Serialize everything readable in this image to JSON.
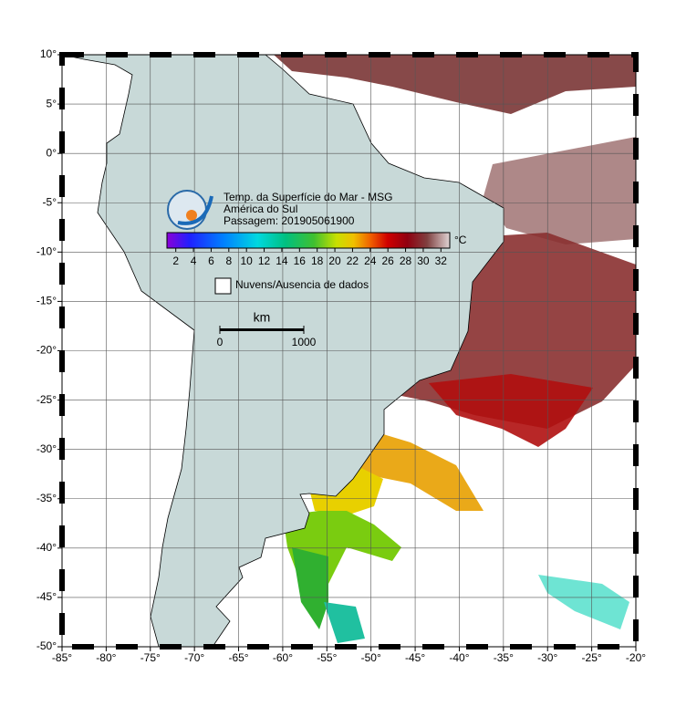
{
  "chart_data": {
    "type": "map",
    "title": "Temp. da Superfície do Mar - MSG",
    "subtitle": "América do Sul",
    "pass": "Passagem: 201905061900",
    "xlim": [
      -85,
      -20
    ],
    "xticks": [
      {
        "value": -85,
        "label": "-85°"
      },
      {
        "value": -80,
        "label": "-80°"
      },
      {
        "value": -75,
        "label": "-75°"
      },
      {
        "value": -70,
        "label": "-70°"
      },
      {
        "value": -65,
        "label": "-65°"
      },
      {
        "value": -60,
        "label": "-60°"
      },
      {
        "value": -55,
        "label": "-55°"
      },
      {
        "value": -50,
        "label": "-50°"
      },
      {
        "value": -45,
        "label": "-45°"
      },
      {
        "value": -40,
        "label": "-40°"
      },
      {
        "value": -35,
        "label": "-35°"
      },
      {
        "value": -30,
        "label": "-30°"
      },
      {
        "value": -25,
        "label": "-25°"
      },
      {
        "value": -20,
        "label": "-20°"
      }
    ],
    "ylim": [
      -50,
      10
    ],
    "yticks": [
      {
        "value": 10,
        "label": "10°"
      },
      {
        "value": 5,
        "label": "5°"
      },
      {
        "value": 0,
        "label": "0°"
      },
      {
        "value": -5,
        "label": "-5°"
      },
      {
        "value": -10,
        "label": "-10°"
      },
      {
        "value": -15,
        "label": "-15°"
      },
      {
        "value": -20,
        "label": "-20°"
      },
      {
        "value": -25,
        "label": "-25°"
      },
      {
        "value": -30,
        "label": "-30°"
      },
      {
        "value": -35,
        "label": "-35°"
      },
      {
        "value": -40,
        "label": "-40°"
      },
      {
        "value": -45,
        "label": "-45°"
      },
      {
        "value": -50,
        "label": "-50°"
      }
    ],
    "grid": true,
    "colorbar": {
      "clim": [
        1,
        33
      ],
      "ticks": [
        2,
        4,
        6,
        8,
        10,
        12,
        14,
        16,
        18,
        20,
        22,
        24,
        26,
        28,
        30,
        32
      ],
      "unit": "°C"
    },
    "legend": "Nuvens/Ausencia de dados",
    "scale": {
      "unit": "km",
      "ticks": [
        0,
        1000
      ]
    }
  }
}
